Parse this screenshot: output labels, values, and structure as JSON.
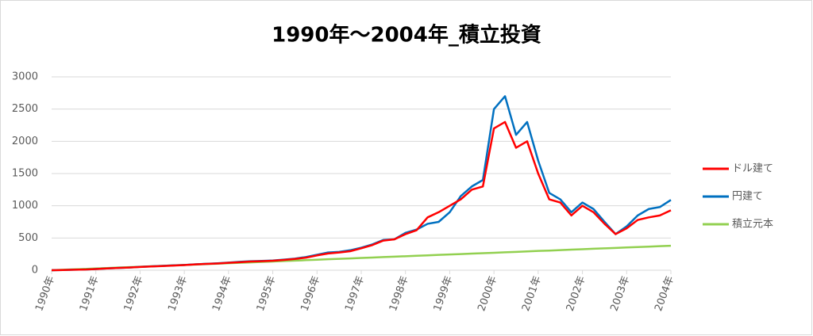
{
  "chart_data": {
    "type": "line",
    "title": "1990年～2004年_積立投資",
    "x": [
      1990,
      1990.25,
      1990.5,
      1990.75,
      1991,
      1991.25,
      1991.5,
      1991.75,
      1992,
      1992.25,
      1992.5,
      1992.75,
      1993,
      1993.25,
      1993.5,
      1993.75,
      1994,
      1994.25,
      1994.5,
      1994.75,
      1995,
      1995.25,
      1995.5,
      1995.75,
      1996,
      1996.25,
      1996.5,
      1996.75,
      1997,
      1997.25,
      1997.5,
      1997.75,
      1998,
      1998.25,
      1998.5,
      1998.75,
      1999,
      1999.25,
      1999.5,
      1999.75,
      2000,
      2000.25,
      2000.5,
      2000.75,
      2001,
      2001.25,
      2001.5,
      2001.75,
      2002,
      2002.25,
      2002.5,
      2002.75,
      2003,
      2003.25,
      2003.5,
      2003.75,
      2004
    ],
    "series": [
      {
        "name": "ドル建て",
        "color": "#ff0000",
        "values": [
          0,
          3,
          7,
          10,
          18,
          28,
          35,
          42,
          50,
          58,
          65,
          72,
          80,
          90,
          98,
          105,
          115,
          125,
          135,
          140,
          148,
          160,
          175,
          195,
          230,
          260,
          275,
          295,
          340,
          390,
          460,
          480,
          560,
          620,
          820,
          900,
          1000,
          1100,
          1250,
          1300,
          2200,
          2300,
          1900,
          2000,
          1500,
          1100,
          1050,
          850,
          1000,
          900,
          720,
          560,
          650,
          780,
          820,
          850,
          930
        ]
      },
      {
        "name": "円建て",
        "color": "#0070c0",
        "values": [
          0,
          3,
          7,
          10,
          18,
          28,
          35,
          42,
          52,
          60,
          68,
          75,
          82,
          92,
          100,
          108,
          118,
          130,
          140,
          145,
          150,
          165,
          180,
          205,
          240,
          275,
          285,
          310,
          350,
          400,
          470,
          480,
          580,
          630,
          720,
          750,
          900,
          1150,
          1300,
          1400,
          2500,
          2700,
          2100,
          2300,
          1700,
          1200,
          1100,
          900,
          1050,
          950,
          750,
          560,
          680,
          850,
          950,
          980,
          1090
        ]
      },
      {
        "name": "積立元本",
        "color": "#92d050",
        "values": [
          0,
          7,
          14,
          20,
          27,
          34,
          41,
          48,
          54,
          61,
          68,
          75,
          81,
          88,
          95,
          102,
          109,
          115,
          122,
          129,
          136,
          143,
          149,
          156,
          163,
          170,
          177,
          183,
          190,
          197,
          204,
          210,
          217,
          224,
          231,
          238,
          244,
          251,
          258,
          265,
          271,
          278,
          285,
          292,
          299,
          305,
          312,
          319,
          326,
          333,
          339,
          346,
          353,
          360,
          366,
          373,
          380
        ]
      }
    ],
    "xlim": [
      1990,
      2004
    ],
    "xticks": [
      {
        "value": 1990,
        "label": "1990年"
      },
      {
        "value": 1991,
        "label": "1991年"
      },
      {
        "value": 1992,
        "label": "1992年"
      },
      {
        "value": 1993,
        "label": "1993年"
      },
      {
        "value": 1994,
        "label": "1994年"
      },
      {
        "value": 1995,
        "label": "1995年"
      },
      {
        "value": 1996,
        "label": "1996年"
      },
      {
        "value": 1997,
        "label": "1997年"
      },
      {
        "value": 1998,
        "label": "1998年"
      },
      {
        "value": 1999,
        "label": "1999年"
      },
      {
        "value": 2000,
        "label": "2000年"
      },
      {
        "value": 2001,
        "label": "2001年"
      },
      {
        "value": 2002,
        "label": "2002年"
      },
      {
        "value": 2003,
        "label": "2003年"
      },
      {
        "value": 2004,
        "label": "2004年"
      }
    ],
    "ylim": [
      0,
      3000
    ],
    "yticks": [
      0,
      500,
      1000,
      1500,
      2000,
      2500,
      3000
    ],
    "grid": true,
    "legend": "right"
  }
}
